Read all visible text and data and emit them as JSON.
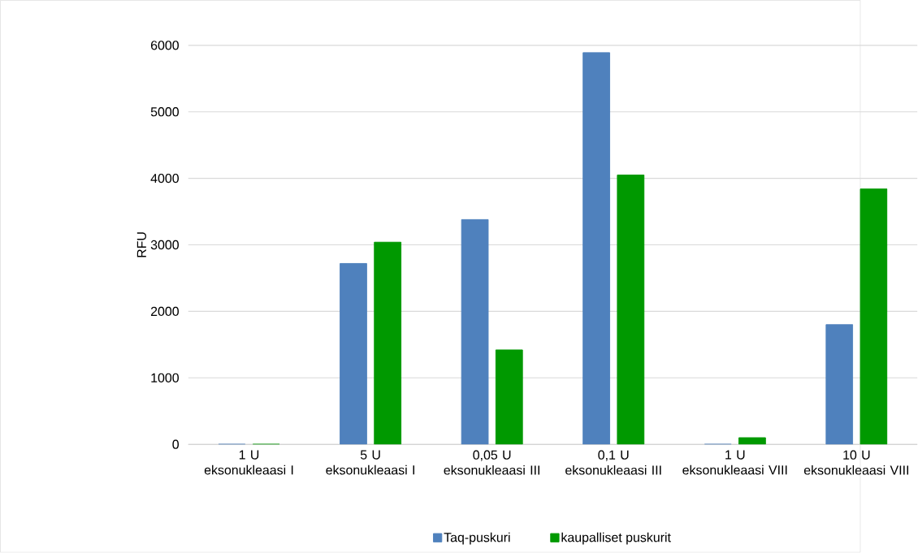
{
  "chart_data": {
    "type": "bar",
    "ylabel": "RFU",
    "categories": [
      "1 U eksonukleaasi I",
      "5 U eksonukleaasi I",
      "0,05 U eksonukleaasi III",
      "0,1 U eksonukleaasi III",
      "1 U eksonukleaasi VIII",
      "10 U eksonukleaasi VIII"
    ],
    "series": [
      {
        "name": "Taq-puskuri",
        "color": "#4f81bd",
        "values": [
          0,
          2720,
          3380,
          5890,
          0,
          1800
        ]
      },
      {
        "name": "kaupalliset puskurit",
        "color": "#009900",
        "values": [
          0,
          3040,
          1420,
          4050,
          100,
          3840
        ]
      }
    ],
    "ylim": [
      0,
      6000
    ],
    "yticks": [
      0,
      1000,
      2000,
      3000,
      4000,
      5000,
      6000
    ],
    "grid": "y",
    "legend": "bottom"
  }
}
